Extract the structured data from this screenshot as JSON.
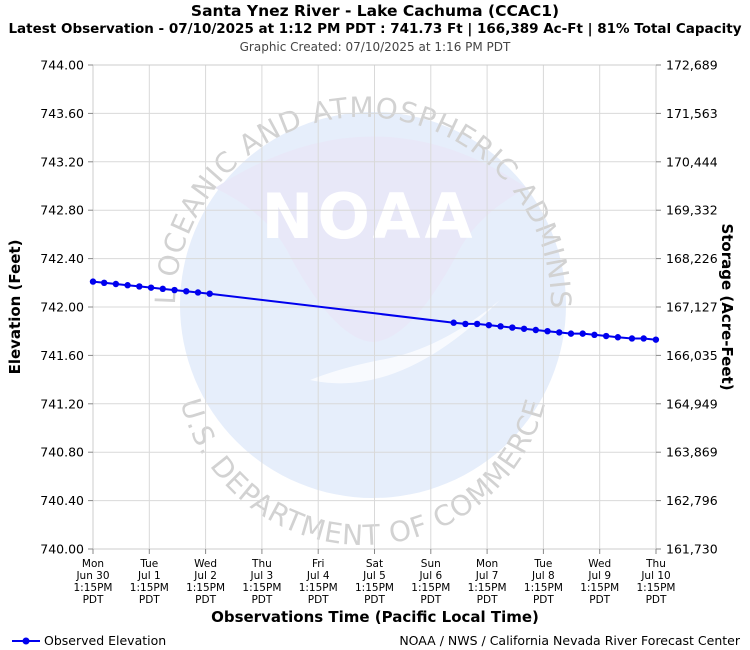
{
  "header": {
    "title": "Santa Ynez River - Lake Cachuma (CCAC1)",
    "latest": "Latest Observation - 07/10/2025 at 1:12 PM PDT : 741.73 Ft | 166,389 Ac-Ft | 81% Total Capacity",
    "created": "Graphic Created: 07/10/2025 at 1:16 PM PDT"
  },
  "watermark": {
    "logo_text": "NOAA",
    "ring_top": "NATIONAL OCEANIC AND ATMOSPHERIC ADMINISTRATION",
    "ring_bottom": "U.S. DEPARTMENT OF COMMERCE"
  },
  "chart_data": {
    "type": "line",
    "xlabel": "Observations Time (Pacific Local Time)",
    "ylabel": "Elevation (Feet)",
    "y2label": "Storage (Acre-Feet)",
    "ylim": [
      740.0,
      744.0
    ],
    "yticks": [
      "744.00",
      "743.60",
      "743.20",
      "742.80",
      "742.40",
      "742.00",
      "741.60",
      "741.20",
      "740.80",
      "740.40",
      "740.00"
    ],
    "y2ticks": [
      "172,689",
      "171,563",
      "170,444",
      "169,332",
      "168,226",
      "167,127",
      "166,035",
      "164,949",
      "163,869",
      "162,796",
      "161,730"
    ],
    "x_range": [
      "2025-06-30 13:15",
      "2025-07-10 13:15"
    ],
    "xticks": [
      {
        "day": "Mon",
        "date": "Jun 30",
        "time": "1:15PM",
        "tz": "PDT"
      },
      {
        "day": "Tue",
        "date": "Jul 1",
        "time": "1:15PM",
        "tz": "PDT"
      },
      {
        "day": "Wed",
        "date": "Jul 2",
        "time": "1:15PM",
        "tz": "PDT"
      },
      {
        "day": "Thu",
        "date": "Jul 3",
        "time": "1:15PM",
        "tz": "PDT"
      },
      {
        "day": "Fri",
        "date": "Jul 4",
        "time": "1:15PM",
        "tz": "PDT"
      },
      {
        "day": "Sat",
        "date": "Jul 5",
        "time": "1:15PM",
        "tz": "PDT"
      },
      {
        "day": "Sun",
        "date": "Jul 6",
        "time": "1:15PM",
        "tz": "PDT"
      },
      {
        "day": "Mon",
        "date": "Jul 7",
        "time": "1:15PM",
        "tz": "PDT"
      },
      {
        "day": "Tue",
        "date": "Jul 8",
        "time": "1:15PM",
        "tz": "PDT"
      },
      {
        "day": "Wed",
        "date": "Jul 9",
        "time": "1:15PM",
        "tz": "PDT"
      },
      {
        "day": "Thu",
        "date": "Jul 10",
        "time": "1:15PM",
        "tz": "PDT"
      }
    ],
    "grid": true,
    "legend_position": "bottom-left",
    "series": [
      {
        "name": "Observed Elevation",
        "color": "#0000ee",
        "points": [
          [
            "2025-06-30 13:15",
            742.21
          ],
          [
            "2025-06-30 18:00",
            742.2
          ],
          [
            "2025-06-30 23:00",
            742.19
          ],
          [
            "2025-07-01 04:00",
            742.18
          ],
          [
            "2025-07-01 09:00",
            742.17
          ],
          [
            "2025-07-01 14:00",
            742.16
          ],
          [
            "2025-07-01 19:00",
            742.15
          ],
          [
            "2025-07-02 00:00",
            742.14
          ],
          [
            "2025-07-02 05:00",
            742.13
          ],
          [
            "2025-07-02 10:00",
            742.12
          ],
          [
            "2025-07-02 15:00",
            742.11
          ],
          [
            "2025-07-06 23:00",
            741.87
          ],
          [
            "2025-07-07 04:00",
            741.86
          ],
          [
            "2025-07-07 09:00",
            741.86
          ],
          [
            "2025-07-07 14:00",
            741.85
          ],
          [
            "2025-07-07 19:00",
            741.84
          ],
          [
            "2025-07-08 00:00",
            741.83
          ],
          [
            "2025-07-08 05:00",
            741.82
          ],
          [
            "2025-07-08 10:00",
            741.81
          ],
          [
            "2025-07-08 15:00",
            741.8
          ],
          [
            "2025-07-08 20:00",
            741.79
          ],
          [
            "2025-07-09 01:00",
            741.78
          ],
          [
            "2025-07-09 06:00",
            741.78
          ],
          [
            "2025-07-09 11:00",
            741.77
          ],
          [
            "2025-07-09 16:00",
            741.76
          ],
          [
            "2025-07-09 21:00",
            741.75
          ],
          [
            "2025-07-10 03:00",
            741.74
          ],
          [
            "2025-07-10 08:00",
            741.74
          ],
          [
            "2025-07-10 13:12",
            741.73
          ]
        ]
      }
    ]
  },
  "footer": {
    "legend_label": "Observed Elevation",
    "credit": "NOAA / NWS / California Nevada River Forecast Center"
  }
}
